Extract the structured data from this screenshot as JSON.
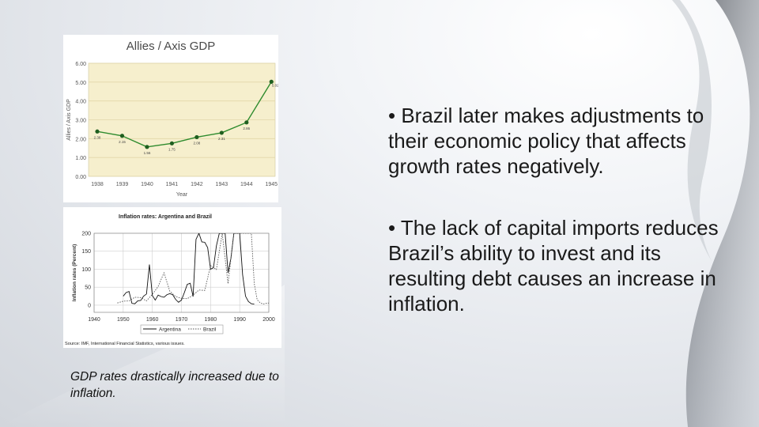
{
  "slide": {
    "bullets": [
      "• Brazil later makes adjustments to their economic policy that affects growth rates negatively.",
      "• The lack of capital imports reduces Brazil’s ability to invest and its resulting debt causes an increase in inflation."
    ],
    "caption": "GDP rates drastically increased due to inflation."
  },
  "chart_data": [
    {
      "type": "line",
      "title": "Allies / Axis GDP",
      "xlabel": "Year",
      "ylabel": "Allies / Axis GDP",
      "x": [
        "1938",
        "1939",
        "1940",
        "1941",
        "1942",
        "1943",
        "1944",
        "1945"
      ],
      "values": [
        2.38,
        2.15,
        1.56,
        1.75,
        2.08,
        2.31,
        2.86,
        5.02
      ],
      "data_labels": [
        "2.38",
        "2.15",
        "1.56",
        "1.75",
        "2.08",
        "2.31",
        "2.86",
        "5.02"
      ],
      "yticks": [
        "6.00",
        "5.00",
        "4.00",
        "3.00",
        "2.00",
        "1.00",
        "0.00"
      ],
      "ylim": [
        0,
        6
      ],
      "grid": true,
      "colors": {
        "line": "#2e8b2e",
        "marker": "#1f5f1f",
        "background": "#f6efcd",
        "grid": "#e2d7a8"
      }
    },
    {
      "type": "line",
      "title": "Inflation rates: Argentina and Brazil",
      "xlabel": "",
      "ylabel": "Inflation rates (Percent)",
      "xticks": [
        "1940",
        "1950",
        "1960",
        "1970",
        "1980",
        "1990",
        "2000"
      ],
      "yticks": [
        "0",
        "50",
        "100",
        "150",
        "200"
      ],
      "xlim": [
        1940,
        2000
      ],
      "ylim": [
        -20,
        200
      ],
      "grid": true,
      "legend": "bottom",
      "source": "Source: IMF, International Financial Statistics, various issues.",
      "series": [
        {
          "name": "Argentina",
          "style": "solid",
          "x": [
            1950,
            1951,
            1952,
            1953,
            1954,
            1955,
            1956,
            1957,
            1958,
            1959,
            1960,
            1961,
            1962,
            1963,
            1964,
            1965,
            1966,
            1967,
            1968,
            1969,
            1970,
            1971,
            1972,
            1973,
            1974,
            1975,
            1976,
            1977,
            1978,
            1979,
            1980,
            1981,
            1982,
            1983,
            1984,
            1985,
            1986,
            1987,
            1988,
            1989,
            1990,
            1991,
            1992,
            1993,
            1994,
            1995
          ],
          "values": [
            25,
            35,
            38,
            5,
            4,
            12,
            13,
            25,
            31,
            113,
            27,
            14,
            28,
            24,
            22,
            29,
            32,
            29,
            16,
            8,
            14,
            35,
            58,
            61,
            24,
            183,
            200,
            176,
            175,
            160,
            100,
            104,
            165,
            200,
            200,
            200,
            90,
            131,
            200,
            200,
            200,
            85,
            25,
            10,
            4,
            3
          ]
        },
        {
          "name": "Brazil",
          "style": "dotted",
          "x": [
            1948,
            1950,
            1952,
            1954,
            1956,
            1958,
            1960,
            1962,
            1964,
            1966,
            1968,
            1970,
            1972,
            1974,
            1976,
            1978,
            1980,
            1982,
            1984,
            1986,
            1988,
            1990,
            1992,
            1994,
            1995,
            1996,
            1997,
            1998,
            1999,
            2000
          ],
          "values": [
            6,
            11,
            12,
            22,
            21,
            12,
            30,
            52,
            90,
            39,
            24,
            19,
            18,
            28,
            42,
            41,
            110,
            99,
            200,
            60,
            200,
            200,
            200,
            200,
            60,
            15,
            7,
            3,
            5,
            6
          ]
        }
      ]
    }
  ]
}
